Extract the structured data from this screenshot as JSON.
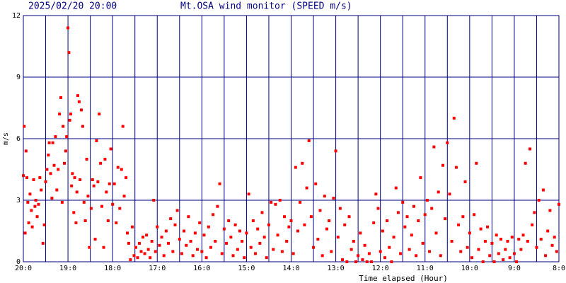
{
  "chart_data": {
    "type": "scatter",
    "timestamp": "2025/02/20 20:00",
    "title": "Mt.OSA wind monitor (SPEED m/s)",
    "x_label": "Time elapsed (Hour)",
    "y_label": "m/s",
    "color": "#ff0000",
    "grid": true,
    "xlim": [
      0,
      12
    ],
    "ylim": [
      0,
      12
    ],
    "yticks": [
      0,
      3,
      6,
      9,
      12
    ],
    "xticks": [
      {
        "value": 0,
        "label": "20:0"
      },
      {
        "value": 1,
        "label": "19:0"
      },
      {
        "value": 2,
        "label": "18:0"
      },
      {
        "value": 3,
        "label": "17:0"
      },
      {
        "value": 4,
        "label": "16:0"
      },
      {
        "value": 5,
        "label": "15:0"
      },
      {
        "value": 6,
        "label": "14:0"
      },
      {
        "value": 7,
        "label": "13:0"
      },
      {
        "value": 8,
        "label": "12:0"
      },
      {
        "value": 9,
        "label": "11:0"
      },
      {
        "value": 10,
        "label": "10:0"
      },
      {
        "value": 11,
        "label": "9:0"
      },
      {
        "value": 12,
        "label": "8:0"
      }
    ],
    "xminor": [
      0.5,
      1.5,
      2.5,
      3.5,
      4.5,
      5.5,
      6.5,
      7.5,
      8.5,
      9.5,
      10.5,
      11.5
    ],
    "x": [
      0,
      0.02,
      0.04,
      0.06,
      0.08,
      0.1,
      0.12,
      0.15,
      0.18,
      0.2,
      0.23,
      0.26,
      0.28,
      0.31,
      0.34,
      0.37,
      0.4,
      0.44,
      0.47,
      0.5,
      0.53,
      0.56,
      0.58,
      0.61,
      0.64,
      0.66,
      0.69,
      0.72,
      0.75,
      0.78,
      0.81,
      0.84,
      0.87,
      0.89,
      0.92,
      0.95,
      0.97,
      1,
      1.02,
      1.04,
      1.06,
      1.08,
      1.1,
      1.13,
      1.15,
      1.18,
      1.2,
      1.22,
      1.25,
      1.27,
      1.3,
      1.33,
      1.36,
      1.39,
      1.42,
      1.45,
      1.48,
      1.52,
      1.55,
      1.58,
      1.61,
      1.64,
      1.67,
      1.7,
      1.73,
      1.76,
      1.8,
      1.83,
      1.86,
      1.9,
      1.93,
      1.96,
      2,
      2.04,
      2.08,
      2.12,
      2.16,
      2.2,
      2.23,
      2.26,
      2.3,
      2.33,
      2.36,
      2.4,
      2.44,
      2.48,
      2.52,
      2.56,
      2.6,
      2.64,
      2.68,
      2.72,
      2.76,
      2.8,
      2.84,
      2.88,
      2.92,
      2.96,
      3,
      3.05,
      3.1,
      3.15,
      3.2,
      3.25,
      3.3,
      3.35,
      3.4,
      3.45,
      3.5,
      3.55,
      3.6,
      3.65,
      3.7,
      3.75,
      3.8,
      3.85,
      3.9,
      3.95,
      4,
      4.05,
      4.1,
      4.15,
      4.2,
      4.25,
      4.3,
      4.35,
      4.4,
      4.45,
      4.5,
      4.55,
      4.6,
      4.65,
      4.7,
      4.75,
      4.8,
      4.85,
      4.9,
      4.95,
      5,
      5.05,
      5.1,
      5.15,
      5.2,
      5.25,
      5.3,
      5.35,
      5.4,
      5.45,
      5.5,
      5.55,
      5.6,
      5.65,
      5.7,
      5.75,
      5.8,
      5.85,
      5.9,
      5.95,
      6,
      6.05,
      6.1,
      6.15,
      6.2,
      6.25,
      6.3,
      6.35,
      6.4,
      6.45,
      6.5,
      6.55,
      6.6,
      6.65,
      6.7,
      6.75,
      6.8,
      6.85,
      6.9,
      6.95,
      7,
      7.05,
      7.1,
      7.15,
      7.2,
      7.25,
      7.3,
      7.35,
      7.4,
      7.45,
      7.5,
      7.55,
      7.6,
      7.65,
      7.7,
      7.75,
      7.8,
      7.85,
      7.9,
      7.95,
      8,
      8.05,
      8.1,
      8.15,
      8.2,
      8.25,
      8.3,
      8.35,
      8.4,
      8.45,
      8.5,
      8.55,
      8.6,
      8.65,
      8.7,
      8.75,
      8.8,
      8.85,
      8.9,
      8.95,
      9,
      9.05,
      9.1,
      9.15,
      9.2,
      9.25,
      9.3,
      9.35,
      9.4,
      9.45,
      9.5,
      9.55,
      9.6,
      9.65,
      9.7,
      9.75,
      9.8,
      9.85,
      9.9,
      9.95,
      10,
      10.05,
      10.1,
      10.15,
      10.2,
      10.25,
      10.3,
      10.35,
      10.4,
      10.45,
      10.5,
      10.55,
      10.6,
      10.65,
      10.7,
      10.75,
      10.8,
      10.85,
      10.9,
      10.95,
      11,
      11.05,
      11.1,
      11.15,
      11.2,
      11.25,
      11.3,
      11.35,
      11.4,
      11.45,
      11.5,
      11.55,
      11.6,
      11.65,
      11.7,
      11.75,
      11.8,
      11.85,
      11.9,
      11.95,
      12
    ],
    "values": [
      4.2,
      6.6,
      1.4,
      5.4,
      4.1,
      2.9,
      1.9,
      3.3,
      2.5,
      1.7,
      4.0,
      2.7,
      3.0,
      2.2,
      2.8,
      4.1,
      3.5,
      0.9,
      1.8,
      3.9,
      4.5,
      5.2,
      5.8,
      4.3,
      3.1,
      5.8,
      4.7,
      6.1,
      3.5,
      4.5,
      7.2,
      8.0,
      2.9,
      6.6,
      4.8,
      5.4,
      6.1,
      11.4,
      10.2,
      6.9,
      7.2,
      3.7,
      4.3,
      2.4,
      4.1,
      1.9,
      3.4,
      8.1,
      7.8,
      4.0,
      7.4,
      6.6,
      2.9,
      2.0,
      5.0,
      3.2,
      0.7,
      2.6,
      4.0,
      3.7,
      1.1,
      5.9,
      3.9,
      7.2,
      4.8,
      2.7,
      0.7,
      5.0,
      3.4,
      2.0,
      3.8,
      5.5,
      2.8,
      3.8,
      1.9,
      4.6,
      2.6,
      4.5,
      6.6,
      3.2,
      4.1,
      1.4,
      0.9,
      0.1,
      1.7,
      0.3,
      0.7,
      0.2,
      0.9,
      0.5,
      1.2,
      0.4,
      1.3,
      0.6,
      0.2,
      1.0,
      3.0,
      0.5,
      1.7,
      0.8,
      1.2,
      0.3,
      1.5,
      0.9,
      2.1,
      0.5,
      1.8,
      2.5,
      1.1,
      0.4,
      1.5,
      0.8,
      2.2,
      1.0,
      0.3,
      1.4,
      0.6,
      1.9,
      0.5,
      1.3,
      0.2,
      1.7,
      0.7,
      2.3,
      1.0,
      2.7,
      3.8,
      0.4,
      1.6,
      0.9,
      2.0,
      1.2,
      0.3,
      1.8,
      0.6,
      1.5,
      1.0,
      0.2,
      1.4,
      3.3,
      0.7,
      2.0,
      0.4,
      1.6,
      0.9,
      2.4,
      1.2,
      0.2,
      1.8,
      2.9,
      0.6,
      2.8,
      1.3,
      3.0,
      0.5,
      2.2,
      1.0,
      1.7,
      2.0,
      0.4,
      4.6,
      1.5,
      2.9,
      4.8,
      1.8,
      3.6,
      5.9,
      2.2,
      0.7,
      3.8,
      1.1,
      2.5,
      0.3,
      3.2,
      1.6,
      2.0,
      0.5,
      3.1,
      5.4,
      1.2,
      2.6,
      0.1,
      1.8,
      0.0,
      2.2,
      0.6,
      1.0,
      0.0,
      0.3,
      1.4,
      0.1,
      0.8,
      0.0,
      0.4,
      0.0,
      1.9,
      3.3,
      2.6,
      0.5,
      1.5,
      0.2,
      2.0,
      0.7,
      0.0,
      1.2,
      3.6,
      2.4,
      0.4,
      2.9,
      1.7,
      2.2,
      0.6,
      1.3,
      2.7,
      0.3,
      2.0,
      4.1,
      0.9,
      2.3,
      3.0,
      0.5,
      2.6,
      5.6,
      1.4,
      3.4,
      0.3,
      4.7,
      2.1,
      5.8,
      3.3,
      1.0,
      7.0,
      4.6,
      1.8,
      0.5,
      2.2,
      3.9,
      0.7,
      1.4,
      0.2,
      2.3,
      4.8,
      0.6,
      1.6,
      0.0,
      1.0,
      1.7,
      0.3,
      0.9,
      0.0,
      1.3,
      0.4,
      1.1,
      0.1,
      0.6,
      1.0,
      0.2,
      1.2,
      0.4,
      0.0,
      1.1,
      0.6,
      1.3,
      4.8,
      1.0,
      5.5,
      1.8,
      2.4,
      0.7,
      3.0,
      1.1,
      3.5,
      0.3,
      1.5,
      2.5,
      0.8,
      1.2,
      0.5,
      2.8
    ]
  }
}
